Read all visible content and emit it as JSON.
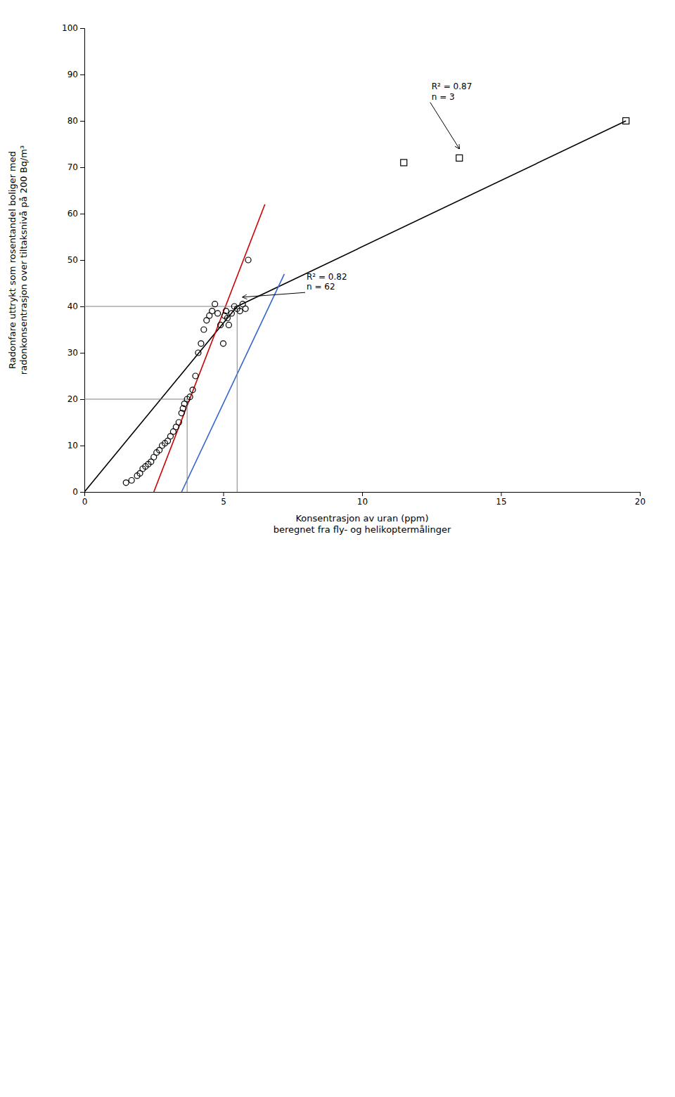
{
  "chart_data": {
    "type": "scatter",
    "xlabel": "Konsentrasjon av uran (ppm)\nberegnet fra fly- og helikoptermålinger",
    "ylabel": "Radonfare uttrykt som rosentandel boliger med\nradonkonsentrasjon over tiltaksnivå på 200 Bq/m³",
    "xlim": [
      0,
      20
    ],
    "ylim": [
      0,
      100
    ],
    "xticks": [
      0,
      5,
      10,
      15,
      20
    ],
    "yticks": [
      0,
      10,
      20,
      30,
      40,
      50,
      60,
      70,
      80,
      90,
      100
    ],
    "grid": false,
    "series": [
      {
        "type": "scatter",
        "marker": "circle",
        "color": "#000000",
        "x": [
          1.5,
          1.7,
          1.9,
          2.0,
          2.1,
          2.2,
          2.3,
          2.4,
          2.5,
          2.6,
          2.7,
          2.8,
          2.9,
          3.0,
          3.1,
          3.2,
          3.3,
          3.4,
          3.5,
          3.55,
          3.6,
          3.7,
          3.8,
          3.9,
          4.0,
          4.1,
          4.2,
          4.3,
          4.4,
          4.5,
          4.6,
          4.7,
          4.8,
          4.9,
          5.0,
          5.05,
          5.1,
          5.15,
          5.2,
          5.3,
          5.4,
          5.5,
          5.6,
          5.7,
          5.8,
          5.9
        ],
        "values": [
          2.0,
          2.5,
          3.5,
          4.0,
          5.0,
          5.5,
          6.0,
          6.5,
          7.5,
          8.5,
          9.0,
          10.0,
          10.5,
          11.0,
          12.0,
          13.0,
          14.0,
          15.0,
          17.0,
          18.0,
          19.0,
          20.0,
          20.5,
          22.0,
          25.0,
          30.0,
          32.0,
          35.0,
          37.0,
          38.0,
          39.0,
          40.5,
          38.5,
          36.0,
          32.0,
          38.0,
          39.0,
          37.5,
          36.0,
          38.5,
          40.0,
          39.5,
          39.0,
          40.5,
          39.5,
          50.0
        ]
      },
      {
        "type": "scatter",
        "marker": "square",
        "color": "#000000",
        "x": [
          11.5,
          13.5,
          19.5
        ],
        "values": [
          71.0,
          72.0,
          80.0
        ]
      },
      {
        "type": "line",
        "color": "#000000",
        "x": [
          0,
          5.5,
          19.5
        ],
        "values": [
          0,
          40.0,
          80.0
        ]
      },
      {
        "type": "line",
        "color": "#cc0000",
        "x": [
          2.5,
          6.5
        ],
        "values": [
          0,
          62.0
        ]
      },
      {
        "type": "line",
        "color": "#3366cc",
        "x": [
          3.5,
          7.2
        ],
        "values": [
          0,
          47.0
        ]
      },
      {
        "type": "line",
        "color": "gray",
        "x": [
          0,
          5.5
        ],
        "values": [
          40,
          40
        ]
      },
      {
        "type": "line",
        "color": "gray",
        "x": [
          0,
          3.7
        ],
        "values": [
          20,
          20
        ]
      },
      {
        "type": "line",
        "color": "gray",
        "x": [
          5.5,
          5.5
        ],
        "values": [
          0,
          40
        ]
      },
      {
        "type": "line",
        "color": "gray",
        "x": [
          3.7,
          3.7
        ],
        "values": [
          0,
          20
        ]
      }
    ],
    "annotations": [
      {
        "text": "R² = 0.87\nn = 3",
        "x": 13.5,
        "y": 74.0,
        "text_x": 12.5,
        "text_y": 84.0
      },
      {
        "text": "R² = 0.82\nn = 62",
        "x": 5.7,
        "y": 42.0,
        "text_x": 8.0,
        "text_y": 43.0
      }
    ]
  }
}
